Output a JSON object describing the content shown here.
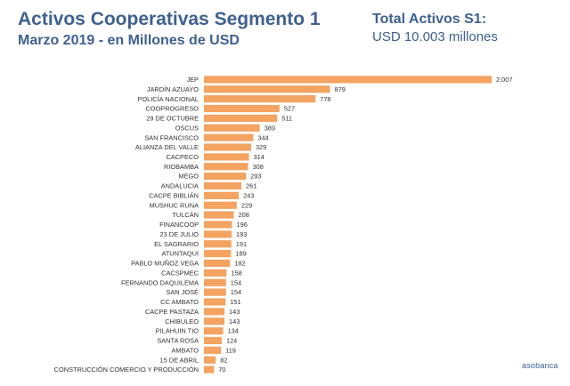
{
  "header": {
    "title": "Activos Cooperativas Segmento 1",
    "subtitle": "Marzo 2019 - en Millones de USD",
    "total_label": "Total Activos S1:",
    "total_value": "USD 10.003 millones"
  },
  "brand": {
    "logo_text": "asobanca"
  },
  "colors": {
    "bar": "#f4a361",
    "title": "#3f6190",
    "label": "#333333"
  },
  "chart_data": {
    "type": "bar",
    "orientation": "horizontal",
    "title": "Activos Cooperativas Segmento 1",
    "subtitle": "Marzo 2019 - en Millones de USD",
    "categories": [
      "JEP",
      "JARDÍN AZUAYO",
      "POLICÍA NACIONAL",
      "COOPROGRESO",
      "29 DE OCTUBRE",
      "OSCUS",
      "SAN FRANCISCO",
      "ALIANZA DEL VALLE",
      "CACPECO",
      "RIOBAMBA",
      "MEGO",
      "ANDALUCIA",
      "CACPE BIBLIÁN",
      "MUSHUC RUNA",
      "TULCÁN",
      "FINANCOOP",
      "23 DE JULIO",
      "EL SAGRARIO",
      "ATUNTAQUI",
      "PABLO MUÑOZ VEGA",
      "CACSPMEC",
      "FERNANDO DAQUILEMA",
      "SAN JOSÉ",
      "CC AMBATO",
      "CACPE PASTAZA",
      "CHIBULEO",
      "PILAHUIN TIO",
      "SANTA ROSA",
      "AMBATO",
      "15 DE ABRIL",
      "CONSTRUCCIÓN COMERCIO Y PRODUCCIÓN"
    ],
    "values": [
      2007,
      879,
      778,
      527,
      511,
      389,
      344,
      329,
      314,
      308,
      293,
      261,
      243,
      229,
      208,
      196,
      193,
      191,
      189,
      182,
      158,
      154,
      154,
      151,
      143,
      143,
      134,
      124,
      119,
      82,
      70
    ],
    "value_labels": [
      "2.007",
      "879",
      "778",
      "527",
      "511",
      "389",
      "344",
      "329",
      "314",
      "308",
      "293",
      "261",
      "243",
      "229",
      "208",
      "196",
      "193",
      "191",
      "189",
      "182",
      "158",
      "154",
      "154",
      "151",
      "143",
      "143",
      "134",
      "124",
      "119",
      "82",
      "70"
    ],
    "xlim": [
      0,
      2007
    ],
    "grid": false,
    "legend": "none"
  }
}
